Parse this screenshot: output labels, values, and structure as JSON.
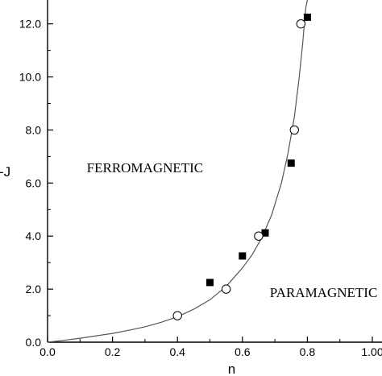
{
  "chart_data": {
    "type": "scatter",
    "xlabel": "n",
    "ylabel": "-J",
    "xlim": [
      0.0,
      1.0
    ],
    "ylim": [
      0.0,
      12.9
    ],
    "x_ticks": [
      0.0,
      0.2,
      0.4,
      0.6,
      0.8,
      1.0
    ],
    "x_tick_labels": [
      "0.0",
      "0.2",
      "0.4",
      "0.6",
      "0.8",
      "1.00"
    ],
    "y_ticks": [
      0.0,
      2.0,
      4.0,
      6.0,
      8.0,
      10.0,
      12.0
    ],
    "y_tick_labels": [
      "0.0",
      "2.0",
      "4.0",
      "6.0",
      "8.0",
      "10.0",
      "12.0"
    ],
    "grid": false,
    "annotations": [
      {
        "text": "FERROMAGNETIC",
        "x": 0.3,
        "y": 6.4
      },
      {
        "text": "PARAMAGNETIC",
        "x": 0.85,
        "y": 1.7
      }
    ],
    "series": [
      {
        "marker": "filled-square",
        "color": "#000000",
        "points": [
          [
            0.5,
            2.25
          ],
          [
            0.6,
            3.25
          ],
          [
            0.67,
            4.12
          ],
          [
            0.75,
            6.75
          ],
          [
            0.8,
            12.25
          ]
        ]
      },
      {
        "marker": "open-circle",
        "color": "#000000",
        "points": [
          [
            0.4,
            1.0
          ],
          [
            0.55,
            2.0
          ],
          [
            0.65,
            4.0
          ],
          [
            0.76,
            8.0
          ],
          [
            0.78,
            12.0
          ]
        ]
      },
      {
        "marker": "line",
        "color": "#555555",
        "points": [
          [
            0.0,
            0.0
          ],
          [
            0.05,
            0.07
          ],
          [
            0.1,
            0.15
          ],
          [
            0.15,
            0.24
          ],
          [
            0.2,
            0.33
          ],
          [
            0.25,
            0.45
          ],
          [
            0.3,
            0.58
          ],
          [
            0.35,
            0.75
          ],
          [
            0.4,
            0.96
          ],
          [
            0.45,
            1.24
          ],
          [
            0.5,
            1.6
          ],
          [
            0.55,
            2.1
          ],
          [
            0.6,
            2.8
          ],
          [
            0.63,
            3.3
          ],
          [
            0.66,
            3.95
          ],
          [
            0.69,
            4.8
          ],
          [
            0.72,
            6.0
          ],
          [
            0.74,
            7.1
          ],
          [
            0.76,
            8.5
          ],
          [
            0.775,
            10.0
          ],
          [
            0.785,
            11.2
          ],
          [
            0.795,
            12.6
          ],
          [
            0.8,
            12.9
          ]
        ]
      }
    ]
  }
}
